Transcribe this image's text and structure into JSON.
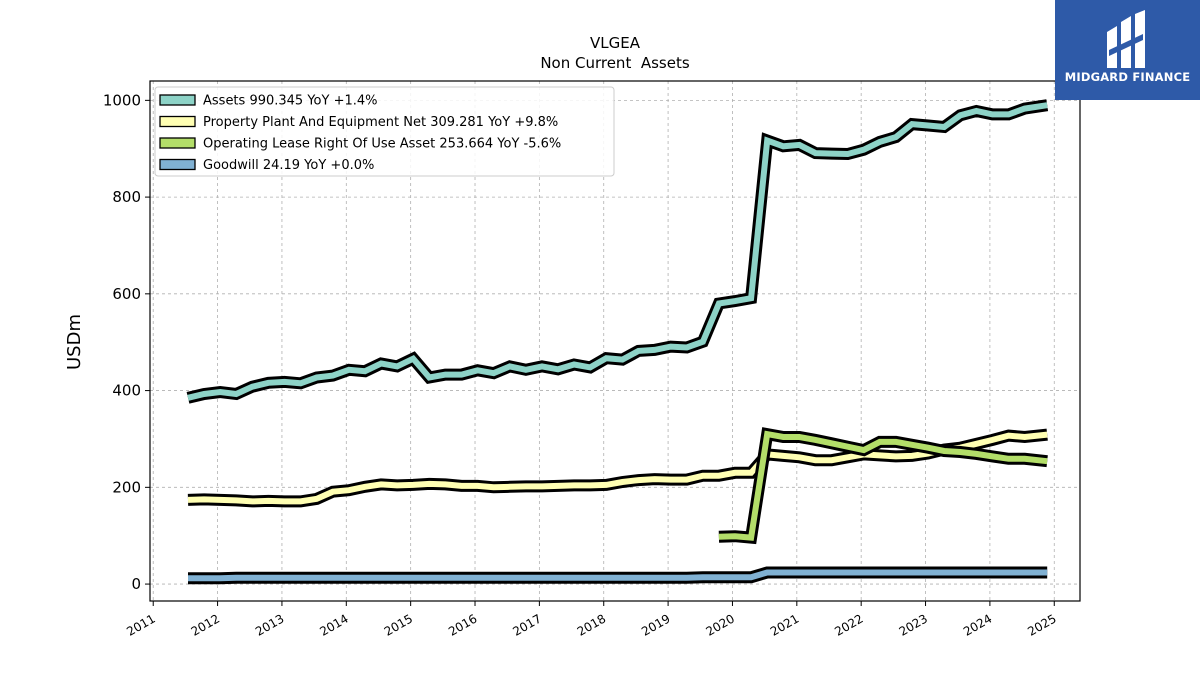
{
  "chart_data": {
    "type": "line",
    "title": "VLGEA",
    "subtitle": "Non Current  Assets",
    "ylabel": "USDm",
    "xlabel": "",
    "xlim": [
      2010.95,
      2025.4
    ],
    "ylim": [
      -35,
      1040
    ],
    "yticks": [
      0,
      200,
      400,
      600,
      800,
      1000
    ],
    "xticks": [
      2011,
      2012,
      2013,
      2014,
      2015,
      2016,
      2017,
      2018,
      2019,
      2020,
      2021,
      2022,
      2023,
      2024,
      2025
    ],
    "grid": true,
    "legend_position": "top-left",
    "series": [
      {
        "name": "Assets  990.345 YoY +1.4%",
        "color": "#8dd3c7",
        "linewidth": 9,
        "points": [
          [
            2011.54,
            385
          ],
          [
            2011.79,
            393
          ],
          [
            2012.04,
            397
          ],
          [
            2012.29,
            393
          ],
          [
            2012.54,
            408
          ],
          [
            2012.79,
            416
          ],
          [
            2013.04,
            418
          ],
          [
            2013.29,
            415
          ],
          [
            2013.54,
            427
          ],
          [
            2013.79,
            431
          ],
          [
            2014.04,
            443
          ],
          [
            2014.29,
            440
          ],
          [
            2014.54,
            456
          ],
          [
            2014.79,
            450
          ],
          [
            2015.04,
            466
          ],
          [
            2015.29,
            427
          ],
          [
            2015.54,
            433
          ],
          [
            2015.79,
            433
          ],
          [
            2016.04,
            442
          ],
          [
            2016.29,
            436
          ],
          [
            2016.54,
            450
          ],
          [
            2016.79,
            443
          ],
          [
            2017.04,
            450
          ],
          [
            2017.29,
            444
          ],
          [
            2017.54,
            454
          ],
          [
            2017.79,
            448
          ],
          [
            2018.04,
            467
          ],
          [
            2018.29,
            464
          ],
          [
            2018.54,
            482
          ],
          [
            2018.79,
            484
          ],
          [
            2019.04,
            491
          ],
          [
            2019.29,
            489
          ],
          [
            2019.54,
            501
          ],
          [
            2019.79,
            580
          ],
          [
            2020.04,
            585
          ],
          [
            2020.29,
            591
          ],
          [
            2020.54,
            917
          ],
          [
            2020.79,
            905
          ],
          [
            2021.04,
            908
          ],
          [
            2021.29,
            891
          ],
          [
            2021.54,
            890
          ],
          [
            2021.79,
            889
          ],
          [
            2022.04,
            898
          ],
          [
            2022.29,
            914
          ],
          [
            2022.54,
            924
          ],
          [
            2022.79,
            951
          ],
          [
            2023.04,
            948
          ],
          [
            2023.29,
            945
          ],
          [
            2023.54,
            969
          ],
          [
            2023.79,
            978
          ],
          [
            2024.04,
            971
          ],
          [
            2024.29,
            971
          ],
          [
            2024.54,
            983
          ],
          [
            2024.89,
            990
          ]
        ]
      },
      {
        "name": "Property Plant And Equipment Net  309.281 YoY +9.8%",
        "color": "#ffffb3",
        "linewidth": 9,
        "points": [
          [
            2011.54,
            174
          ],
          [
            2011.79,
            175
          ],
          [
            2012.04,
            174
          ],
          [
            2012.29,
            173
          ],
          [
            2012.54,
            171
          ],
          [
            2012.79,
            172
          ],
          [
            2013.04,
            171
          ],
          [
            2013.29,
            171
          ],
          [
            2013.54,
            176
          ],
          [
            2013.79,
            191
          ],
          [
            2014.04,
            194
          ],
          [
            2014.29,
            201
          ],
          [
            2014.54,
            206
          ],
          [
            2014.79,
            204
          ],
          [
            2015.04,
            205
          ],
          [
            2015.29,
            207
          ],
          [
            2015.54,
            206
          ],
          [
            2015.79,
            203
          ],
          [
            2016.04,
            203
          ],
          [
            2016.29,
            200
          ],
          [
            2016.54,
            201
          ],
          [
            2016.79,
            202
          ],
          [
            2017.04,
            202
          ],
          [
            2017.29,
            203
          ],
          [
            2017.54,
            204
          ],
          [
            2017.79,
            204
          ],
          [
            2018.04,
            205
          ],
          [
            2018.29,
            211
          ],
          [
            2018.54,
            215
          ],
          [
            2018.79,
            217
          ],
          [
            2019.04,
            216
          ],
          [
            2019.29,
            216
          ],
          [
            2019.54,
            224
          ],
          [
            2019.79,
            224
          ],
          [
            2020.04,
            230
          ],
          [
            2020.29,
            230
          ],
          [
            2020.54,
            268
          ],
          [
            2020.79,
            265
          ],
          [
            2021.04,
            262
          ],
          [
            2021.29,
            256
          ],
          [
            2021.54,
            256
          ],
          [
            2021.79,
            262
          ],
          [
            2022.04,
            268
          ],
          [
            2022.29,
            266
          ],
          [
            2022.54,
            264
          ],
          [
            2022.79,
            265
          ],
          [
            2023.04,
            270
          ],
          [
            2023.29,
            278
          ],
          [
            2023.54,
            282
          ],
          [
            2023.79,
            290
          ],
          [
            2024.04,
            298
          ],
          [
            2024.29,
            307
          ],
          [
            2024.54,
            304
          ],
          [
            2024.89,
            309
          ]
        ]
      },
      {
        "name": "Operating Lease Right Of Use Asset  253.664 YoY -5.6%",
        "color": "#b3de69",
        "linewidth": 9,
        "points": [
          [
            2019.79,
            98
          ],
          [
            2020.04,
            99
          ],
          [
            2020.29,
            96
          ],
          [
            2020.54,
            310
          ],
          [
            2020.79,
            304
          ],
          [
            2021.04,
            304
          ],
          [
            2021.29,
            298
          ],
          [
            2021.54,
            291
          ],
          [
            2021.79,
            284
          ],
          [
            2022.04,
            277
          ],
          [
            2022.29,
            294
          ],
          [
            2022.54,
            294
          ],
          [
            2022.79,
            288
          ],
          [
            2023.04,
            282
          ],
          [
            2023.29,
            275
          ],
          [
            2023.54,
            273
          ],
          [
            2023.79,
            269
          ],
          [
            2024.04,
            264
          ],
          [
            2024.29,
            259
          ],
          [
            2024.54,
            259
          ],
          [
            2024.89,
            254
          ]
        ]
      },
      {
        "name": "Goodwill  24.19 YoY +0.0%",
        "color": "#80b1d3",
        "linewidth": 9,
        "points": [
          [
            2011.54,
            12
          ],
          [
            2012.04,
            12
          ],
          [
            2012.29,
            13
          ],
          [
            2012.54,
            13
          ],
          [
            2019.29,
            13
          ],
          [
            2019.54,
            14
          ],
          [
            2020.29,
            14
          ],
          [
            2020.54,
            24
          ],
          [
            2024.89,
            24
          ]
        ]
      }
    ]
  },
  "brand": {
    "name": "MIDGARD FINANCE",
    "color": "#2e5aa8",
    "icon": "midgard-logo-icon"
  }
}
